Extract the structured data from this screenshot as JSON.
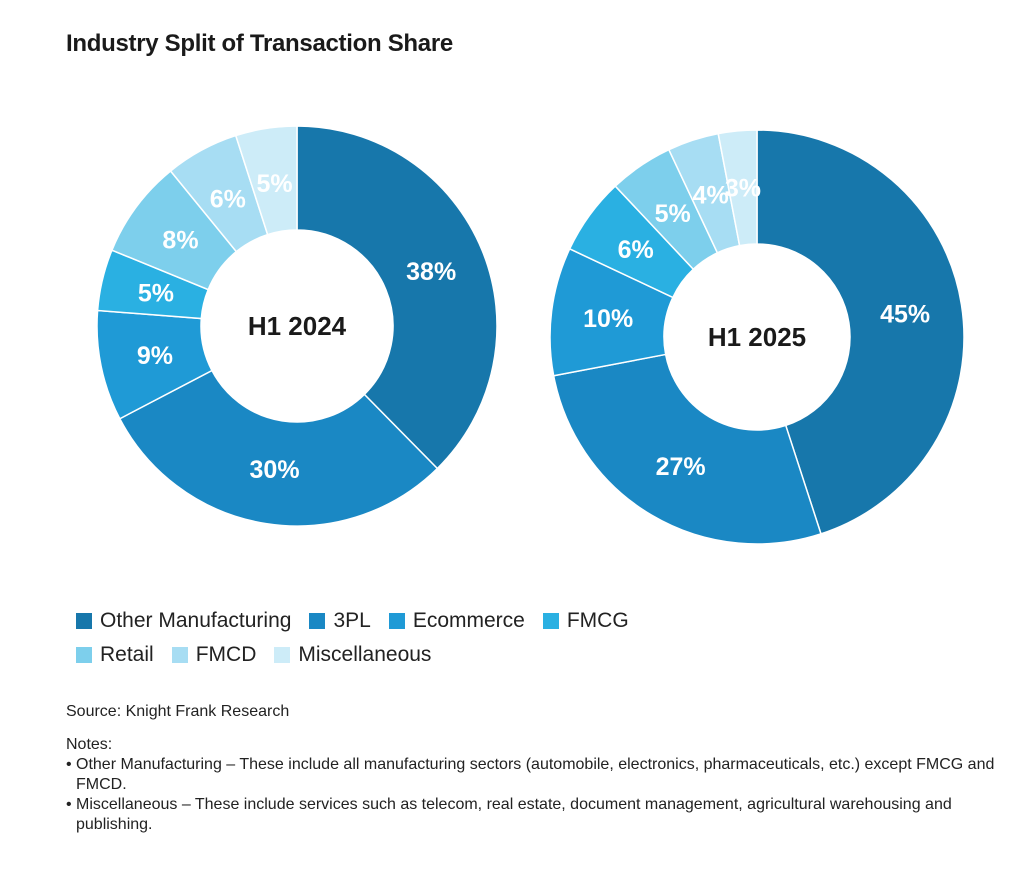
{
  "title": "Industry Split of Transaction Share",
  "categories": [
    "Other Manufacturing",
    "3PL",
    "Ecommerce",
    "FMCG",
    "Retail",
    "FMCD",
    "Miscellaneous"
  ],
  "colors": [
    "#1777ab",
    "#1a88c4",
    "#1f9ad6",
    "#2ab0e2",
    "#7dcfec",
    "#a7ddf3",
    "#cdecf8"
  ],
  "legend_rows": [
    [
      0,
      1,
      2,
      3
    ],
    [
      4,
      5,
      6
    ]
  ],
  "chart_data": [
    {
      "type": "pie",
      "center_label": "H1 2024",
      "categories": [
        "Other Manufacturing",
        "3PL",
        "Ecommerce",
        "FMCG",
        "Retail",
        "FMCD",
        "Miscellaneous"
      ],
      "values": [
        38,
        30,
        9,
        5,
        8,
        6,
        5
      ],
      "labels": [
        "38%",
        "30%",
        "9%",
        "5%",
        "8%",
        "6%",
        "5%"
      ]
    },
    {
      "type": "pie",
      "center_label": "H1 2025",
      "categories": [
        "Other Manufacturing",
        "3PL",
        "Ecommerce",
        "FMCG",
        "Retail",
        "FMCD",
        "Miscellaneous"
      ],
      "values": [
        45,
        27,
        10,
        6,
        5,
        4,
        3
      ],
      "labels": [
        "45%",
        "27%",
        "10%",
        "6%",
        "5%",
        "4%",
        "3%"
      ]
    }
  ],
  "source": "Source: Knight Frank Research",
  "notes_heading": "Notes:",
  "notes": [
    "Other Manufacturing – These include all manufacturing sectors (automobile, electronics, pharmaceuticals, etc.) except FMCG and FMCD.",
    "Miscellaneous – These include services such as telecom, real estate, document management, agricultural warehousing and publishing."
  ],
  "bullet_char": "•"
}
